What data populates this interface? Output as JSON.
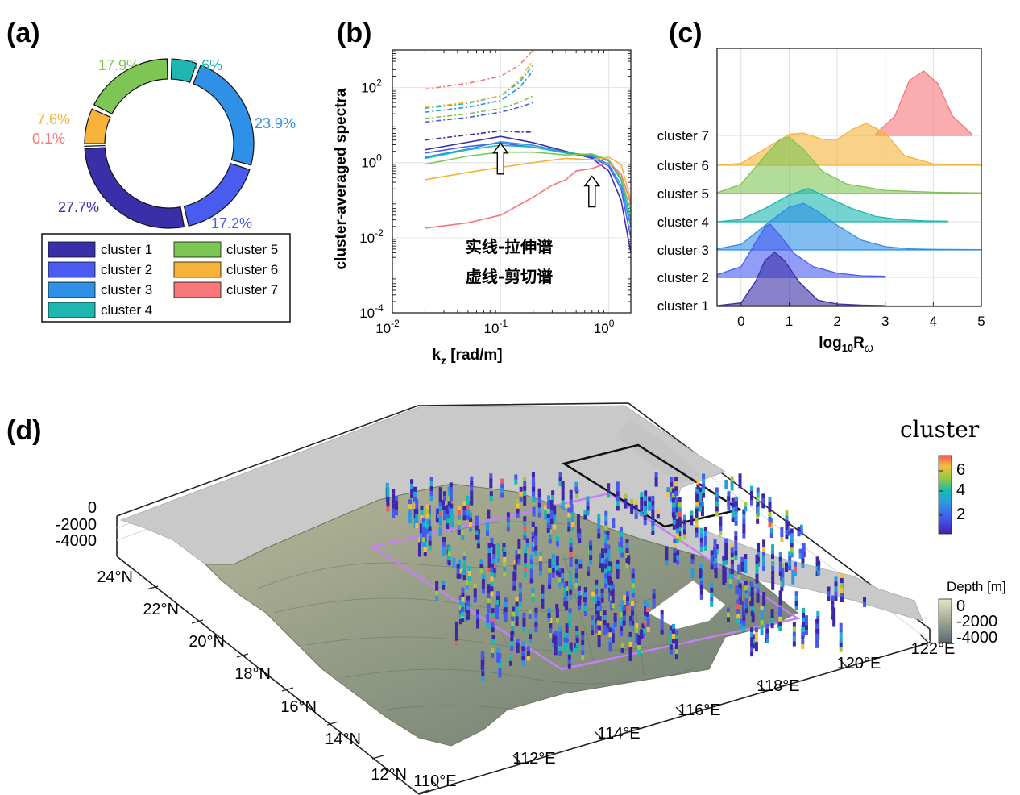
{
  "panels": {
    "a": "(a)",
    "b": "(b)",
    "c": "(c)",
    "d": "(d)"
  },
  "colors": {
    "cluster 1": "#3a2fa8",
    "cluster 2": "#4a5cf0",
    "cluster 3": "#2e90e6",
    "cluster 4": "#1db6b0",
    "cluster 5": "#7dc653",
    "cluster 6": "#f6b23a",
    "cluster 7": "#f7777a"
  },
  "chart_data": [
    {
      "type": "pie",
      "style": "donut",
      "categories": [
        "cluster 1",
        "cluster 2",
        "cluster 3",
        "cluster 4",
        "cluster 5",
        "cluster 6",
        "cluster 7"
      ],
      "values": [
        27.7,
        17.2,
        23.9,
        5.6,
        17.9,
        7.6,
        0.1
      ],
      "labels": [
        "27.7%",
        "17.2%",
        "23.9%",
        "5.6%",
        "17.9%",
        "7.6%",
        "0.1%"
      ],
      "legend": [
        "cluster 1",
        "cluster 2",
        "cluster 3",
        "cluster 4",
        "cluster 5",
        "cluster 6",
        "cluster 7"
      ],
      "legend_placement": "bottom"
    },
    {
      "type": "line",
      "xscale": "log",
      "yscale": "log",
      "xlim": [
        0.01,
        1.6
      ],
      "ylim": [
        0.0001,
        1000
      ],
      "xlabel": "k_z [rad/m]",
      "ylabel": "cluster-averaged spectra",
      "xticks": [
        "10^-2",
        "10^-1",
        "10^0"
      ],
      "yticks": [
        "10^-4",
        "10^-2",
        "10^0",
        "10^2"
      ],
      "annotation": [
        "实线-拉伸谱",
        "虚线-剪切谱"
      ],
      "arrows_at": [
        {
          "x": 0.1,
          "y": 0.9
        },
        {
          "x": 0.7,
          "y": 0.12
        }
      ],
      "series": [
        {
          "name": "cluster 1",
          "style": "solid",
          "x": [
            0.02,
            0.05,
            0.1,
            0.2,
            0.4,
            0.7,
            1.0,
            1.3,
            1.6
          ],
          "values": [
            2.2,
            3.5,
            5.0,
            3.4,
            2.0,
            1.3,
            0.6,
            0.1,
            0.004
          ]
        },
        {
          "name": "cluster 2",
          "style": "solid",
          "x": [
            0.02,
            0.05,
            0.1,
            0.2,
            0.4,
            0.7,
            1.0,
            1.3,
            1.6
          ],
          "values": [
            1.8,
            2.7,
            3.3,
            2.6,
            1.8,
            1.4,
            0.8,
            0.2,
            0.01
          ]
        },
        {
          "name": "cluster 3",
          "style": "solid",
          "x": [
            0.02,
            0.05,
            0.1,
            0.2,
            0.4,
            0.7,
            1.0,
            1.3,
            1.6
          ],
          "values": [
            1.4,
            2.3,
            3.6,
            2.9,
            1.9,
            1.5,
            0.9,
            0.25,
            0.02
          ]
        },
        {
          "name": "cluster 4",
          "style": "solid",
          "x": [
            0.02,
            0.05,
            0.1,
            0.2,
            0.4,
            0.7,
            1.0,
            1.3,
            1.6
          ],
          "values": [
            1.3,
            2.2,
            2.9,
            2.6,
            1.8,
            1.6,
            1.1,
            0.35,
            0.03
          ]
        },
        {
          "name": "cluster 5",
          "style": "solid",
          "x": [
            0.02,
            0.05,
            0.1,
            0.2,
            0.4,
            0.7,
            1.0,
            1.3,
            1.6
          ],
          "values": [
            0.9,
            1.5,
            1.9,
            1.9,
            1.6,
            1.7,
            1.2,
            0.4,
            0.05
          ]
        },
        {
          "name": "cluster 6",
          "style": "solid",
          "x": [
            0.02,
            0.05,
            0.1,
            0.2,
            0.4,
            0.7,
            1.0,
            1.3,
            1.6
          ],
          "values": [
            0.35,
            0.55,
            0.75,
            1.0,
            1.3,
            1.2,
            1.4,
            0.9,
            0.1
          ]
        },
        {
          "name": "cluster 7",
          "style": "solid",
          "x": [
            0.02,
            0.05,
            0.1,
            0.2,
            0.3,
            0.4,
            0.5,
            0.7,
            1.0,
            1.3,
            1.6
          ],
          "values": [
            0.018,
            0.025,
            0.04,
            0.12,
            0.25,
            0.35,
            0.6,
            0.7,
            1.0,
            0.5,
            0.08
          ]
        },
        {
          "name": "cluster 1",
          "style": "dashed",
          "x": [
            0.02,
            0.05,
            0.1,
            0.15,
            0.2
          ],
          "values": [
            4,
            5.5,
            7,
            6.5,
            6.5
          ]
        },
        {
          "name": "cluster 2",
          "style": "dashed",
          "x": [
            0.02,
            0.05,
            0.1,
            0.15,
            0.2
          ],
          "values": [
            12,
            16,
            22,
            30,
            40
          ]
        },
        {
          "name": "cluster 3",
          "style": "dashed",
          "x": [
            0.02,
            0.05,
            0.1,
            0.15,
            0.2
          ],
          "values": [
            22,
            30,
            45,
            100,
            280
          ]
        },
        {
          "name": "cluster 4",
          "style": "dashed",
          "x": [
            0.02,
            0.05,
            0.1,
            0.15,
            0.2
          ],
          "values": [
            28,
            38,
            60,
            140,
            400
          ]
        },
        {
          "name": "cluster 5",
          "style": "dashed",
          "x": [
            0.02,
            0.05,
            0.1,
            0.15,
            0.2
          ],
          "values": [
            15,
            20,
            28,
            40,
            60
          ]
        },
        {
          "name": "cluster 6",
          "style": "dashed",
          "x": [
            0.02,
            0.05,
            0.1,
            0.15,
            0.2
          ],
          "values": [
            30,
            40,
            60,
            160,
            550
          ]
        },
        {
          "name": "cluster 7",
          "style": "dashed",
          "x": [
            0.02,
            0.05,
            0.1,
            0.15,
            0.2
          ],
          "values": [
            90,
            130,
            200,
            400,
            1000
          ]
        }
      ]
    },
    {
      "type": "area",
      "style": "ridgeline",
      "xlabel": "log10 R_ω",
      "xlim": [
        -0.5,
        5
      ],
      "xticks": [
        0,
        1,
        2,
        3,
        4,
        5
      ],
      "categories": [
        "cluster 1",
        "cluster 2",
        "cluster 3",
        "cluster 4",
        "cluster 5",
        "cluster 6",
        "cluster 7"
      ],
      "series": [
        {
          "name": "cluster 1",
          "x": [
            -0.5,
            0,
            0.3,
            0.5,
            0.7,
            0.9,
            1.2,
            1.6,
            2.0,
            2.5,
            3.0
          ],
          "values": [
            0,
            0.05,
            0.45,
            0.85,
            1.0,
            0.85,
            0.45,
            0.1,
            0.03,
            0.01,
            0
          ]
        },
        {
          "name": "cluster 2",
          "x": [
            -0.5,
            0,
            0.3,
            0.5,
            0.6,
            0.8,
            1.1,
            1.5,
            2.0,
            2.5,
            3.0
          ],
          "values": [
            0.05,
            0.2,
            0.65,
            0.95,
            1.0,
            0.8,
            0.45,
            0.2,
            0.08,
            0.03,
            0.02
          ]
        },
        {
          "name": "cluster 3",
          "x": [
            -0.5,
            0,
            0.5,
            0.8,
            1.0,
            1.3,
            1.6,
            2.0,
            2.5,
            3.0,
            3.5,
            4.0,
            5.0
          ],
          "values": [
            0.02,
            0.1,
            0.45,
            0.65,
            0.78,
            0.85,
            0.7,
            0.45,
            0.18,
            0.06,
            0.02,
            0.01,
            0.005
          ]
        },
        {
          "name": "cluster 4",
          "x": [
            -0.5,
            0,
            0.5,
            1.0,
            1.4,
            1.8,
            2.3,
            2.8,
            3.3,
            3.8,
            4.3
          ],
          "values": [
            0.0,
            0.05,
            0.3,
            0.6,
            0.75,
            0.55,
            0.3,
            0.12,
            0.05,
            0.02,
            0.01
          ]
        },
        {
          "name": "cluster 5",
          "x": [
            -0.5,
            0,
            0.5,
            0.8,
            1.0,
            1.3,
            1.7,
            2.2,
            3.0,
            4.0,
            5.0
          ],
          "values": [
            0.01,
            0.15,
            0.6,
            0.85,
            0.9,
            0.7,
            0.35,
            0.15,
            0.05,
            0.02,
            0.01
          ]
        },
        {
          "name": "cluster 6",
          "x": [
            -0.5,
            0,
            0.6,
            1.0,
            1.3,
            1.7,
            2.0,
            2.3,
            2.6,
            3.0,
            3.4,
            4.0,
            5.0
          ],
          "values": [
            0.0,
            0.03,
            0.3,
            0.48,
            0.5,
            0.4,
            0.4,
            0.55,
            0.65,
            0.5,
            0.15,
            0.02,
            0.01
          ]
        },
        {
          "name": "cluster 7",
          "x": [
            2.8,
            3.2,
            3.5,
            3.8,
            4.1,
            4.4,
            4.8
          ],
          "values": [
            0.02,
            0.3,
            0.85,
            1.0,
            0.8,
            0.3,
            0.02
          ]
        }
      ]
    },
    {
      "type": "scatter",
      "style": "3d bathymetry map with cluster-colored profiles",
      "xticks": [
        "110°E",
        "112°E",
        "114°E",
        "116°E",
        "118°E",
        "120°E",
        "122°E"
      ],
      "yticks": [
        "12°N",
        "14°N",
        "16°N",
        "18°N",
        "20°N",
        "22°N",
        "24°N"
      ],
      "zticks": [
        "0",
        "-2000",
        "-4000"
      ],
      "colorbar_cluster": {
        "title": "cluster",
        "ticks": [
          "2",
          "4",
          "6"
        ]
      },
      "colorbar_depth": {
        "title": "Depth [m]",
        "ticks": [
          "0",
          "-2000",
          "-4000"
        ]
      }
    }
  ]
}
